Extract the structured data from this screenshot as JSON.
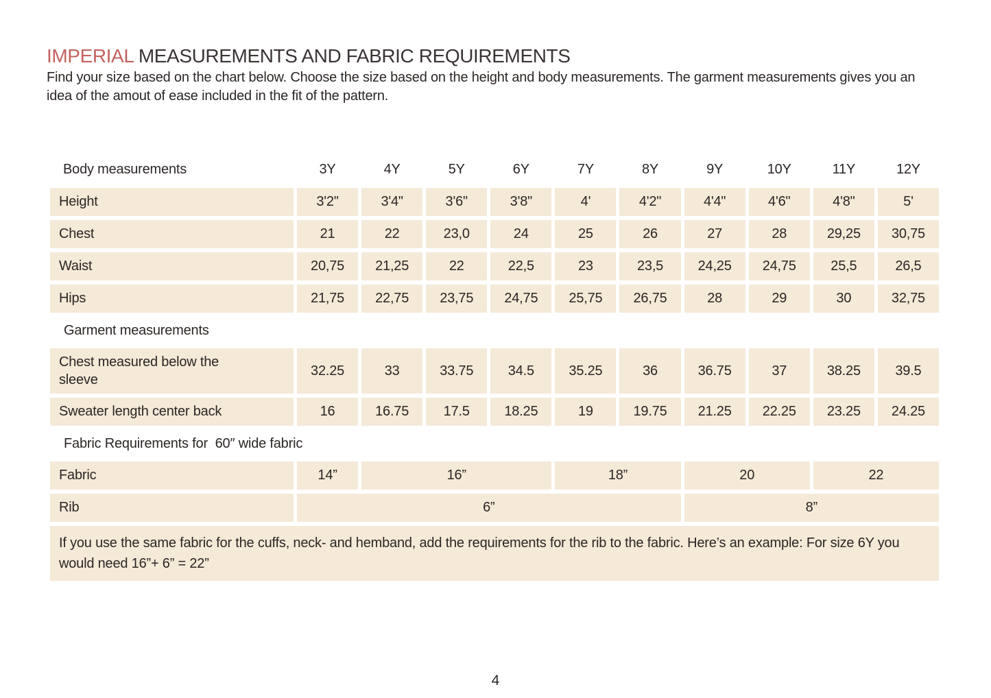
{
  "title": {
    "highlight": "IMPERIAL",
    "rest": " MEASUREMENTS AND FABRIC REQUIREMENTS"
  },
  "intro": "Find your size based on the chart below. Choose the size based on the height and body measurements. The garment measurements gives you an idea of the amout of ease included in the fit of the pattern.",
  "colors": {
    "accent": "#c4625e",
    "cell_bg": "#f5e9d8",
    "text": "#2b2624"
  },
  "table": {
    "header": {
      "label": "Body measurements",
      "sizes": [
        "3Y",
        "4Y",
        "5Y",
        "6Y",
        "7Y",
        "8Y",
        "9Y",
        "10Y",
        "11Y",
        "12Y"
      ]
    },
    "body_rows": [
      {
        "label": "Height",
        "values": [
          "3'2\"",
          "3'4\"",
          "3'6\"",
          "3'8\"",
          "4'",
          "4'2\"",
          "4'4\"",
          "4'6\"",
          "4'8\"",
          "5'"
        ]
      },
      {
        "label": "Chest",
        "values": [
          "21",
          "22",
          "23,0",
          "24",
          "25",
          "26",
          "27",
          "28",
          "29,25",
          "30,75"
        ]
      },
      {
        "label": "Waist",
        "values": [
          "20,75",
          "21,25",
          "22",
          "22,5",
          "23",
          "23,5",
          "24,25",
          "24,75",
          "25,5",
          "26,5"
        ]
      },
      {
        "label": "Hips",
        "values": [
          "21,75",
          "22,75",
          "23,75",
          "24,75",
          "25,75",
          "26,75",
          "28",
          "29",
          "30",
          "32,75"
        ]
      }
    ],
    "garment_section_label": "Garment measurements",
    "garment_rows": [
      {
        "label": "Chest measured below the sleeve",
        "tall": true,
        "values": [
          "32.25",
          "33",
          "33.75",
          "34.5",
          "35.25",
          "36",
          "36.75",
          "37",
          "38.25",
          "39.5"
        ]
      },
      {
        "label": "Sweater length center back",
        "tall": false,
        "values": [
          "16",
          "16.75",
          "17.5",
          "18.25",
          "19",
          "19.75",
          "21.25",
          "22.25",
          "23.25",
          "24.25"
        ]
      }
    ],
    "fabric_section_label": "Fabric Requirements for  60″ wide fabric",
    "fabric_rows": [
      {
        "label": "Fabric",
        "cells": [
          {
            "text": "14”",
            "span": 1
          },
          {
            "text": "16”",
            "span": 3
          },
          {
            "text": "18”",
            "span": 2
          },
          {
            "text": "20",
            "span": 2
          },
          {
            "text": "22",
            "span": 2
          }
        ]
      },
      {
        "label": "Rib",
        "cells": [
          {
            "text": "6”",
            "span": 6
          },
          {
            "text": "8”",
            "span": 4
          }
        ]
      }
    ],
    "note": "If you use the same fabric for the cuffs, neck- and hemband, add the requirements for the rib to the fabric. Here’s an example: For size 6Y you would need 16”+ 6” = 22”"
  },
  "page": {
    "number": "4"
  }
}
